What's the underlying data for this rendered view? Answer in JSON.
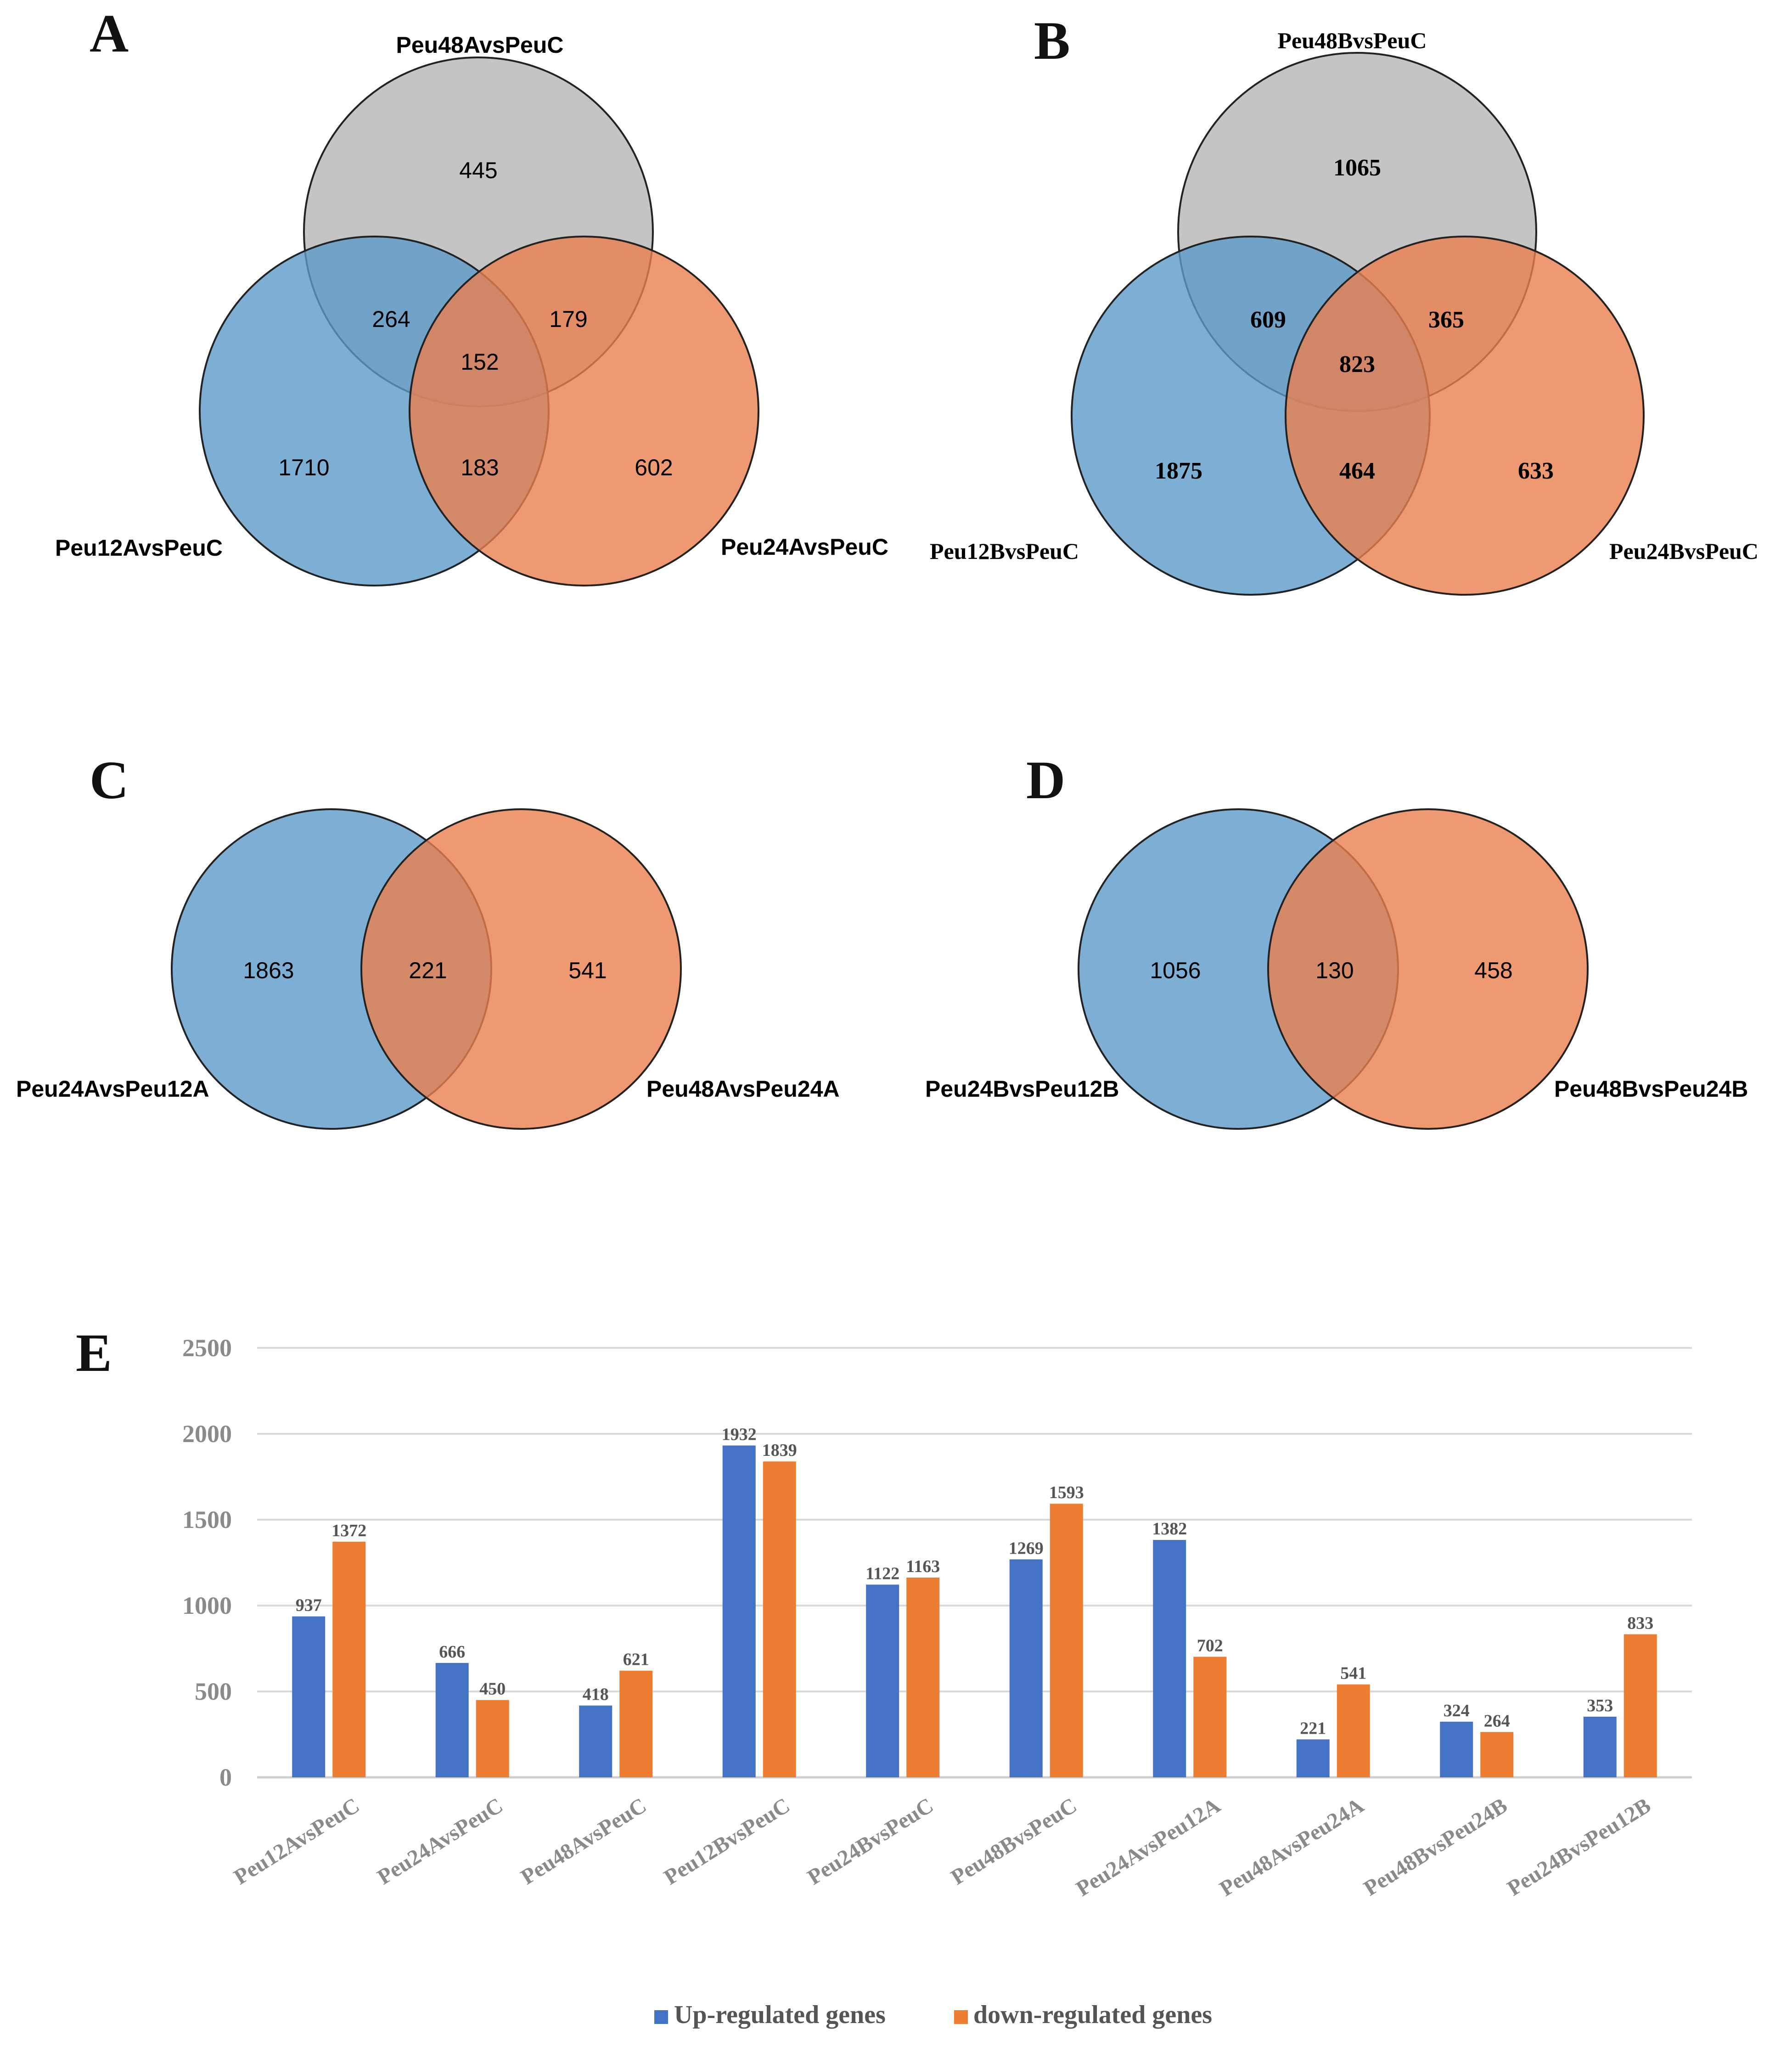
{
  "panels": {
    "A": "A",
    "B": "B",
    "C": "C",
    "D": "D",
    "E": "E"
  },
  "venn_A": {
    "sets": [
      "Peu48AvsPeuC",
      "Peu12AvsPeuC",
      "Peu24AvsPeuC"
    ],
    "top_only": "445",
    "left_only": "1710",
    "right_only": "602",
    "top_left": "264",
    "top_right": "179",
    "left_right": "183",
    "center": "152",
    "colors": {
      "top": "#b4b4b4",
      "left": "#5b9bc8",
      "right": "#ea7f4f"
    }
  },
  "venn_B": {
    "sets": [
      "Peu48BvsPeuC",
      "Peu12BvsPeuC",
      "Peu24BvsPeuC"
    ],
    "top_only": "1065",
    "left_only": "1875",
    "right_only": "633",
    "top_left": "609",
    "top_right": "365",
    "left_right": "464",
    "center": "823",
    "colors": {
      "top": "#b4b4b4",
      "left": "#5b9bc8",
      "right": "#ea7f4f"
    }
  },
  "venn_C": {
    "sets": [
      "Peu24AvsPeu12A",
      "Peu48AvsPeu24A"
    ],
    "left_only": "1863",
    "overlap": "221",
    "right_only": "541",
    "colors": {
      "left": "#5b9bc8",
      "right": "#ea7f4f"
    }
  },
  "venn_D": {
    "sets": [
      "Peu24BvsPeu12B",
      "Peu48BvsPeu24B"
    ],
    "left_only": "1056",
    "overlap": "130",
    "right_only": "458",
    "colors": {
      "left": "#5b9bc8",
      "right": "#ea7f4f"
    }
  },
  "chart_data": {
    "type": "bar",
    "title": "",
    "xlabel": "",
    "ylabel": "",
    "ylim": [
      0,
      2500
    ],
    "yticks": [
      "0",
      "500",
      "1000",
      "1500",
      "2000",
      "2500"
    ],
    "grid": true,
    "legend_position": "bottom",
    "categories": [
      "Peu12AvsPeuC",
      "Peu24AvsPeuC",
      "Peu48AvsPeuC",
      "Peu12BvsPeuC",
      "Peu24BvsPeuC",
      "Peu48BvsPeuC",
      "Peu24AvsPeu12A",
      "Peu48AvsPeu24A",
      "Peu48BvsPeu24B",
      "Peu24BvsPeu12B"
    ],
    "series": [
      {
        "name": "Up-regulated genes",
        "color": "#4472c4",
        "values": [
          937,
          666,
          418,
          1932,
          1122,
          1269,
          1382,
          221,
          324,
          353
        ]
      },
      {
        "name": "down-regulated genes",
        "color": "#ed7d31",
        "values": [
          1372,
          450,
          621,
          1839,
          1163,
          1593,
          702,
          541,
          264,
          833
        ]
      }
    ]
  }
}
